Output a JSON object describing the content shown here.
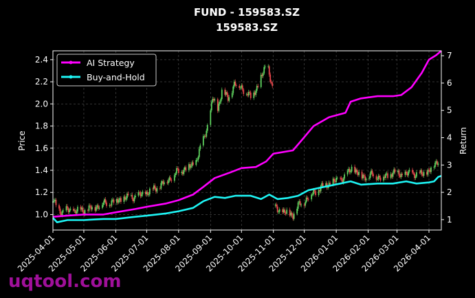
{
  "watermark": "uqtool.com",
  "chart_data": {
    "type": "line",
    "title": "FUND - 159583.SZ",
    "subtitle": "159583.SZ",
    "ylabel": "Price",
    "y2label": "Return",
    "grid": true,
    "legend_position": "top-left",
    "x_ticks": [
      "2025-04-01",
      "2025-05-01",
      "2025-06-01",
      "2025-07-01",
      "2025-08-01",
      "2025-09-01",
      "2025-10-01",
      "2025-11-01",
      "2025-12-01",
      "2026-01-01",
      "2026-02-01",
      "2026-03-01",
      "2026-04-01"
    ],
    "xlim": [
      "2025-04-01",
      "2026-04-13"
    ],
    "y_ticks": [
      "1.0",
      "1.2",
      "1.4",
      "1.6",
      "1.8",
      "2.0",
      "2.2",
      "2.4"
    ],
    "ylim": [
      0.86,
      2.48
    ],
    "y2_ticks": [
      "1",
      "2",
      "3",
      "4",
      "5",
      "6",
      "7"
    ],
    "y2lim": [
      0.62,
      7.18
    ],
    "candle_up_color": "#5fd35f",
    "candle_down_color": "#e8474c",
    "price_points": [
      [
        "2025-04-01",
        1.13
      ],
      [
        "2025-04-05",
        1.06
      ],
      [
        "2025-04-10",
        1.02
      ],
      [
        "2025-04-15",
        1.04
      ],
      [
        "2025-04-22",
        1.03
      ],
      [
        "2025-05-01",
        1.04
      ],
      [
        "2025-05-10",
        1.06
      ],
      [
        "2025-05-20",
        1.1
      ],
      [
        "2025-05-31",
        1.12
      ],
      [
        "2025-06-10",
        1.15
      ],
      [
        "2025-06-20",
        1.16
      ],
      [
        "2025-06-30",
        1.19
      ],
      [
        "2025-07-10",
        1.24
      ],
      [
        "2025-07-20",
        1.3
      ],
      [
        "2025-07-31",
        1.39
      ],
      [
        "2025-08-10",
        1.42
      ],
      [
        "2025-08-18",
        1.48
      ],
      [
        "2025-08-25",
        1.68
      ],
      [
        "2025-08-31",
        1.86
      ],
      [
        "2025-09-03",
        2.05
      ],
      [
        "2025-09-08",
        1.95
      ],
      [
        "2025-09-12",
        2.12
      ],
      [
        "2025-09-18",
        2.05
      ],
      [
        "2025-09-24",
        2.18
      ],
      [
        "2025-10-01",
        2.15
      ],
      [
        "2025-10-10",
        2.06
      ],
      [
        "2025-10-18",
        2.18
      ],
      [
        "2025-10-26",
        2.38
      ],
      [
        "2025-11-01",
        2.08
      ],
      [
        "2025-11-02",
        null
      ],
      [
        "2025-11-03",
        1.06
      ],
      [
        "2025-11-10",
        1.02
      ],
      [
        "2025-11-20",
        1.0
      ],
      [
        "2025-11-25",
        1.08
      ],
      [
        "2025-12-01",
        1.12
      ],
      [
        "2025-12-10",
        1.2
      ],
      [
        "2025-12-20",
        1.26
      ],
      [
        "2025-12-31",
        1.3
      ],
      [
        "2026-01-10",
        1.34
      ],
      [
        "2026-01-16",
        1.42
      ],
      [
        "2026-01-26",
        1.34
      ],
      [
        "2026-02-05",
        1.36
      ],
      [
        "2026-02-15",
        1.33
      ],
      [
        "2026-02-25",
        1.38
      ],
      [
        "2026-03-05",
        1.36
      ],
      [
        "2026-03-15",
        1.37
      ],
      [
        "2026-03-25",
        1.36
      ],
      [
        "2026-04-01",
        1.4
      ],
      [
        "2026-04-07",
        1.45
      ],
      [
        "2026-04-13",
        1.53
      ]
    ],
    "series": [
      {
        "name": "AI Strategy",
        "color": "#ff00ff",
        "points": [
          [
            "2025-04-01",
            0.98
          ],
          [
            "2025-04-15",
            0.99
          ],
          [
            "2025-05-01",
            1.0
          ],
          [
            "2025-05-20",
            1.0
          ],
          [
            "2025-06-01",
            1.02
          ],
          [
            "2025-06-20",
            1.05
          ],
          [
            "2025-07-01",
            1.07
          ],
          [
            "2025-07-20",
            1.1
          ],
          [
            "2025-08-01",
            1.13
          ],
          [
            "2025-08-15",
            1.18
          ],
          [
            "2025-08-25",
            1.25
          ],
          [
            "2025-09-05",
            1.33
          ],
          [
            "2025-09-20",
            1.38
          ],
          [
            "2025-10-01",
            1.42
          ],
          [
            "2025-10-15",
            1.43
          ],
          [
            "2025-10-25",
            1.48
          ],
          [
            "2025-11-01",
            1.55
          ],
          [
            "2025-11-20",
            1.58
          ],
          [
            "2025-12-01",
            1.7
          ],
          [
            "2025-12-10",
            1.8
          ],
          [
            "2025-12-25",
            1.88
          ],
          [
            "2026-01-10",
            1.92
          ],
          [
            "2026-01-15",
            2.02
          ],
          [
            "2026-01-25",
            2.05
          ],
          [
            "2026-02-10",
            2.07
          ],
          [
            "2026-02-25",
            2.07
          ],
          [
            "2026-03-05",
            2.08
          ],
          [
            "2026-03-15",
            2.15
          ],
          [
            "2026-03-25",
            2.28
          ],
          [
            "2026-04-01",
            2.4
          ],
          [
            "2026-04-08",
            2.44
          ],
          [
            "2026-04-13",
            2.48
          ]
        ]
      },
      {
        "name": "Buy-and-Hold",
        "color": "#1ef5f5",
        "points": [
          [
            "2025-04-01",
            0.97
          ],
          [
            "2025-04-05",
            0.93
          ],
          [
            "2025-04-15",
            0.95
          ],
          [
            "2025-05-01",
            0.95
          ],
          [
            "2025-05-20",
            0.96
          ],
          [
            "2025-06-01",
            0.96
          ],
          [
            "2025-06-20",
            0.98
          ],
          [
            "2025-07-01",
            0.99
          ],
          [
            "2025-07-20",
            1.01
          ],
          [
            "2025-08-01",
            1.03
          ],
          [
            "2025-08-15",
            1.06
          ],
          [
            "2025-08-25",
            1.12
          ],
          [
            "2025-09-05",
            1.16
          ],
          [
            "2025-09-15",
            1.15
          ],
          [
            "2025-09-25",
            1.17
          ],
          [
            "2025-10-10",
            1.17
          ],
          [
            "2025-10-20",
            1.14
          ],
          [
            "2025-10-28",
            1.18
          ],
          [
            "2025-11-05",
            1.14
          ],
          [
            "2025-11-15",
            1.15
          ],
          [
            "2025-11-25",
            1.17
          ],
          [
            "2025-12-05",
            1.22
          ],
          [
            "2025-12-20",
            1.25
          ],
          [
            "2026-01-05",
            1.28
          ],
          [
            "2026-01-15",
            1.3
          ],
          [
            "2026-01-25",
            1.27
          ],
          [
            "2026-02-10",
            1.28
          ],
          [
            "2026-02-25",
            1.28
          ],
          [
            "2026-03-10",
            1.3
          ],
          [
            "2026-03-20",
            1.28
          ],
          [
            "2026-04-01",
            1.29
          ],
          [
            "2026-04-06",
            1.3
          ],
          [
            "2026-04-10",
            1.34
          ],
          [
            "2026-04-13",
            1.35
          ]
        ]
      }
    ]
  }
}
